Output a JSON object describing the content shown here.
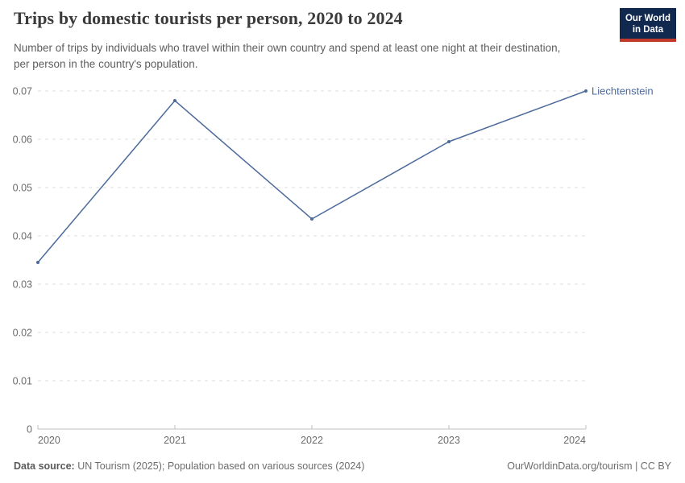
{
  "header": {
    "title": "Trips by domestic tourists per person, 2020 to 2024",
    "subtitle": "Number of trips by individuals who travel within their own country and spend at least one night at their destination, per person in the country's population.",
    "logo": {
      "line1": "Our World",
      "line2": "in Data"
    }
  },
  "chart_data": {
    "type": "line",
    "x": [
      2020,
      2021,
      2022,
      2023,
      2024
    ],
    "x_tick_labels": [
      "2020",
      "2021",
      "2022",
      "2023",
      "2024"
    ],
    "series": [
      {
        "name": "Liechtenstein",
        "values": [
          0.0345,
          0.068,
          0.0435,
          0.0595,
          0.07
        ],
        "color": "#4c6a9c"
      }
    ],
    "title": "Trips by domestic tourists per person, 2020 to 2024",
    "xlabel": "",
    "ylabel": "",
    "ylim": [
      0,
      0.07
    ],
    "yticks": [
      0,
      0.01,
      0.02,
      0.03,
      0.04,
      0.05,
      0.06,
      0.07
    ],
    "ytick_labels": [
      "0",
      "0.01",
      "0.02",
      "0.03",
      "0.04",
      "0.05",
      "0.06",
      "0.07"
    ],
    "grid": "horizontal-dashed",
    "legend_position": "end-of-line-label",
    "end_label": "Liechtenstein"
  },
  "footer": {
    "source_label": "Data source:",
    "source_text": " UN Tourism (2025); Population based on various sources (2024)",
    "link_text": "OurWorldinData.org/tourism | CC BY"
  },
  "colors": {
    "line": "#4c6a9c",
    "end_label": "#4c6a9c",
    "grid": "#dcdcdc",
    "axis": "#bfbfbf",
    "tick_label": "#6b6b6b",
    "title_text": "#3b3b3b",
    "subtitle_text": "#5e5e5e",
    "logo_bg": "#12294f",
    "logo_stripe": "#c0392b"
  }
}
